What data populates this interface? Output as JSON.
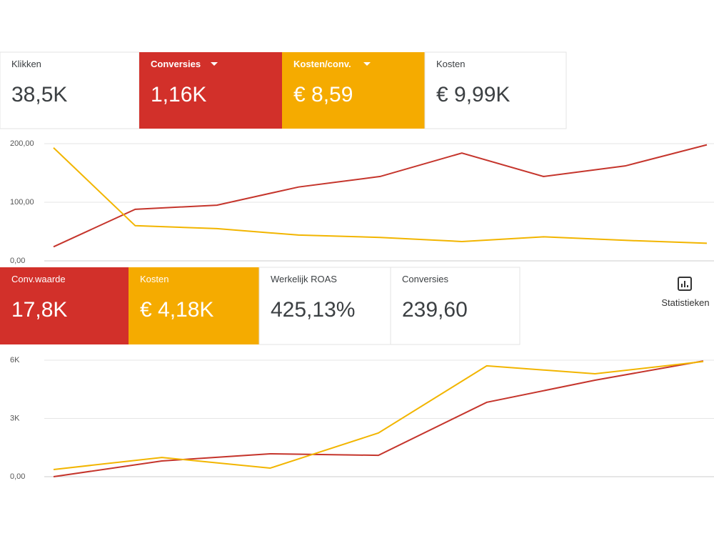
{
  "panel1": {
    "cards": [
      {
        "label": "Klikken",
        "value": "38,5K",
        "color": "#ffffff"
      },
      {
        "label": "Conversies",
        "value": "1,16K",
        "color": "#d2302a",
        "dropdown": true
      },
      {
        "label": "Kosten/conv.",
        "value": "€ 8,59",
        "color": "#f5ab00",
        "dropdown": true
      },
      {
        "label": "Kosten",
        "value": "€ 9,99K",
        "color": "#ffffff"
      }
    ],
    "chart": {
      "type": "line",
      "ylim": [
        0,
        200
      ],
      "yticks": [
        {
          "value": 0,
          "label": "0,00"
        },
        {
          "value": 100,
          "label": "100,00"
        },
        {
          "value": 200,
          "label": "200,00"
        }
      ],
      "grid": true,
      "series": [
        {
          "color": "#c5352c",
          "values": [
            24,
            88,
            95,
            126,
            144,
            184,
            144,
            162,
            198
          ]
        },
        {
          "color": "#f2b500",
          "values": [
            193,
            60,
            55,
            44,
            40,
            33,
            41,
            35,
            30
          ]
        }
      ]
    }
  },
  "panel2": {
    "cards": [
      {
        "label": "Conv.waarde",
        "value": "17,8K",
        "color": "#d2302a"
      },
      {
        "label": "Kosten",
        "value": "€ 4,18K",
        "color": "#f5ab00"
      },
      {
        "label": "Werkelijk ROAS",
        "value": "425,13%",
        "color": "#ffffff"
      },
      {
        "label": "Conversies",
        "value": "239,60",
        "color": "#ffffff"
      }
    ],
    "button": "Statistieken",
    "chart": {
      "type": "line",
      "ylim": [
        0,
        6000
      ],
      "yticks": [
        {
          "value": 0,
          "label": "0,00"
        },
        {
          "value": 3000,
          "label": "3K"
        },
        {
          "value": 6000,
          "label": "6K"
        }
      ],
      "grid": true,
      "series": [
        {
          "color": "#c5352c",
          "values": [
            0,
            810,
            1180,
            1100,
            3830,
            4970,
            5960
          ]
        },
        {
          "color": "#f2b500",
          "values": [
            370,
            990,
            440,
            2250,
            5710,
            5300,
            5930
          ]
        }
      ]
    }
  }
}
